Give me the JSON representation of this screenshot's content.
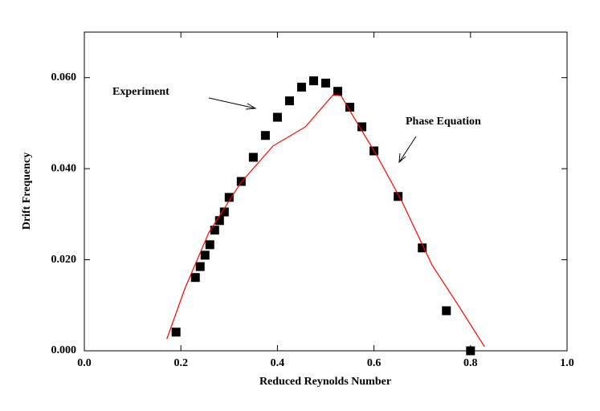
{
  "chart_data": {
    "type": "scatter",
    "xlabel": "Reduced Reynolds Number",
    "ylabel": "Drift Frequency",
    "xlim": [
      0,
      1
    ],
    "ylim": [
      0,
      0.07
    ],
    "xticks": [
      {
        "value": 0,
        "label": "0.0"
      },
      0.2,
      0.4,
      0.6,
      0.8,
      {
        "value": 1,
        "label": "1.0"
      }
    ],
    "yticks": [
      {
        "value": 0,
        "label": "0.000"
      },
      {
        "value": 0.02,
        "label": "0.020"
      },
      {
        "value": 0.04,
        "label": "0.040"
      },
      {
        "value": 0.06,
        "label": "0.060"
      }
    ],
    "grid": false,
    "annotations": [
      "Experiment",
      "Phase Equation"
    ],
    "series": [
      {
        "name": "Experiment",
        "kind": "marker",
        "color": "#000000",
        "x": [
          0.19,
          0.23,
          0.24,
          0.25,
          0.26,
          0.27,
          0.28,
          0.29,
          0.3,
          0.325,
          0.35,
          0.375,
          0.4,
          0.425,
          0.45,
          0.475,
          0.5,
          0.525,
          0.55,
          0.575,
          0.6,
          0.65,
          0.7,
          0.75,
          0.8
        ],
        "values": [
          0.0041,
          0.0161,
          0.0185,
          0.021,
          0.0233,
          0.0265,
          0.0286,
          0.0305,
          0.0337,
          0.0372,
          0.0425,
          0.0473,
          0.0513,
          0.0549,
          0.0579,
          0.0593,
          0.0588,
          0.057,
          0.0535,
          0.0492,
          0.0439,
          0.0339,
          0.0226,
          0.0088,
          0.0
        ]
      },
      {
        "name": "Phase Equation",
        "kind": "line",
        "color": "#ff0000",
        "x": [
          0.171,
          0.208,
          0.258,
          0.324,
          0.391,
          0.458,
          0.516,
          0.532,
          0.557,
          0.607,
          0.657,
          0.72,
          0.774,
          0.829
        ],
        "values": [
          0.0026,
          0.0136,
          0.026,
          0.0369,
          0.045,
          0.0492,
          0.0563,
          0.056,
          0.0515,
          0.0427,
          0.033,
          0.0189,
          0.0101,
          0.0009
        ]
      }
    ]
  }
}
